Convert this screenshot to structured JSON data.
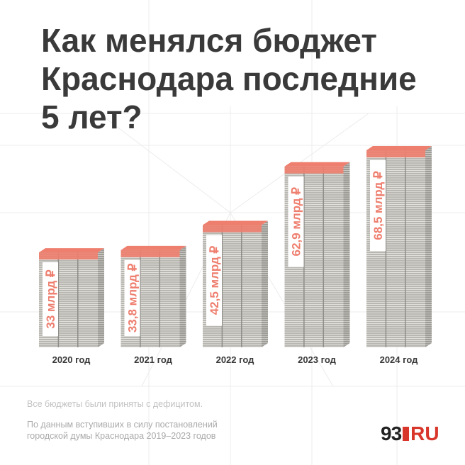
{
  "headline": {
    "line1": "Как менялся бюджет",
    "line2": "Краснодара последние",
    "line3": "5 лет?"
  },
  "footnote": "Все бюджеты были приняты с дефицитом.",
  "source": {
    "line1": "По данным вступивших в силу постановлений",
    "line2": "городской думы Краснодара 2019–2023 годов"
  },
  "logo": {
    "number": "93",
    "suffix": "RU"
  },
  "colors": {
    "accent": "#ee7e6e",
    "stack": "#b5b3ae",
    "text": "#3a3a3a"
  },
  "chart_data": {
    "type": "bar",
    "categories": [
      "2020 год",
      "2021 год",
      "2022 год",
      "2023 год",
      "2024 год"
    ],
    "values": [
      33,
      33.8,
      42.5,
      62.9,
      68.5
    ],
    "value_labels": [
      "33 млрд ₽",
      "33,8 млрд ₽",
      "42,5 млрд ₽",
      "62,9 млрд ₽",
      "68,5 млрд ₽"
    ],
    "title": "Как менялся бюджет Краснодара последние 5 лет?",
    "xlabel": "",
    "ylabel": "",
    "ylim": [
      0,
      70
    ],
    "grid": false
  }
}
